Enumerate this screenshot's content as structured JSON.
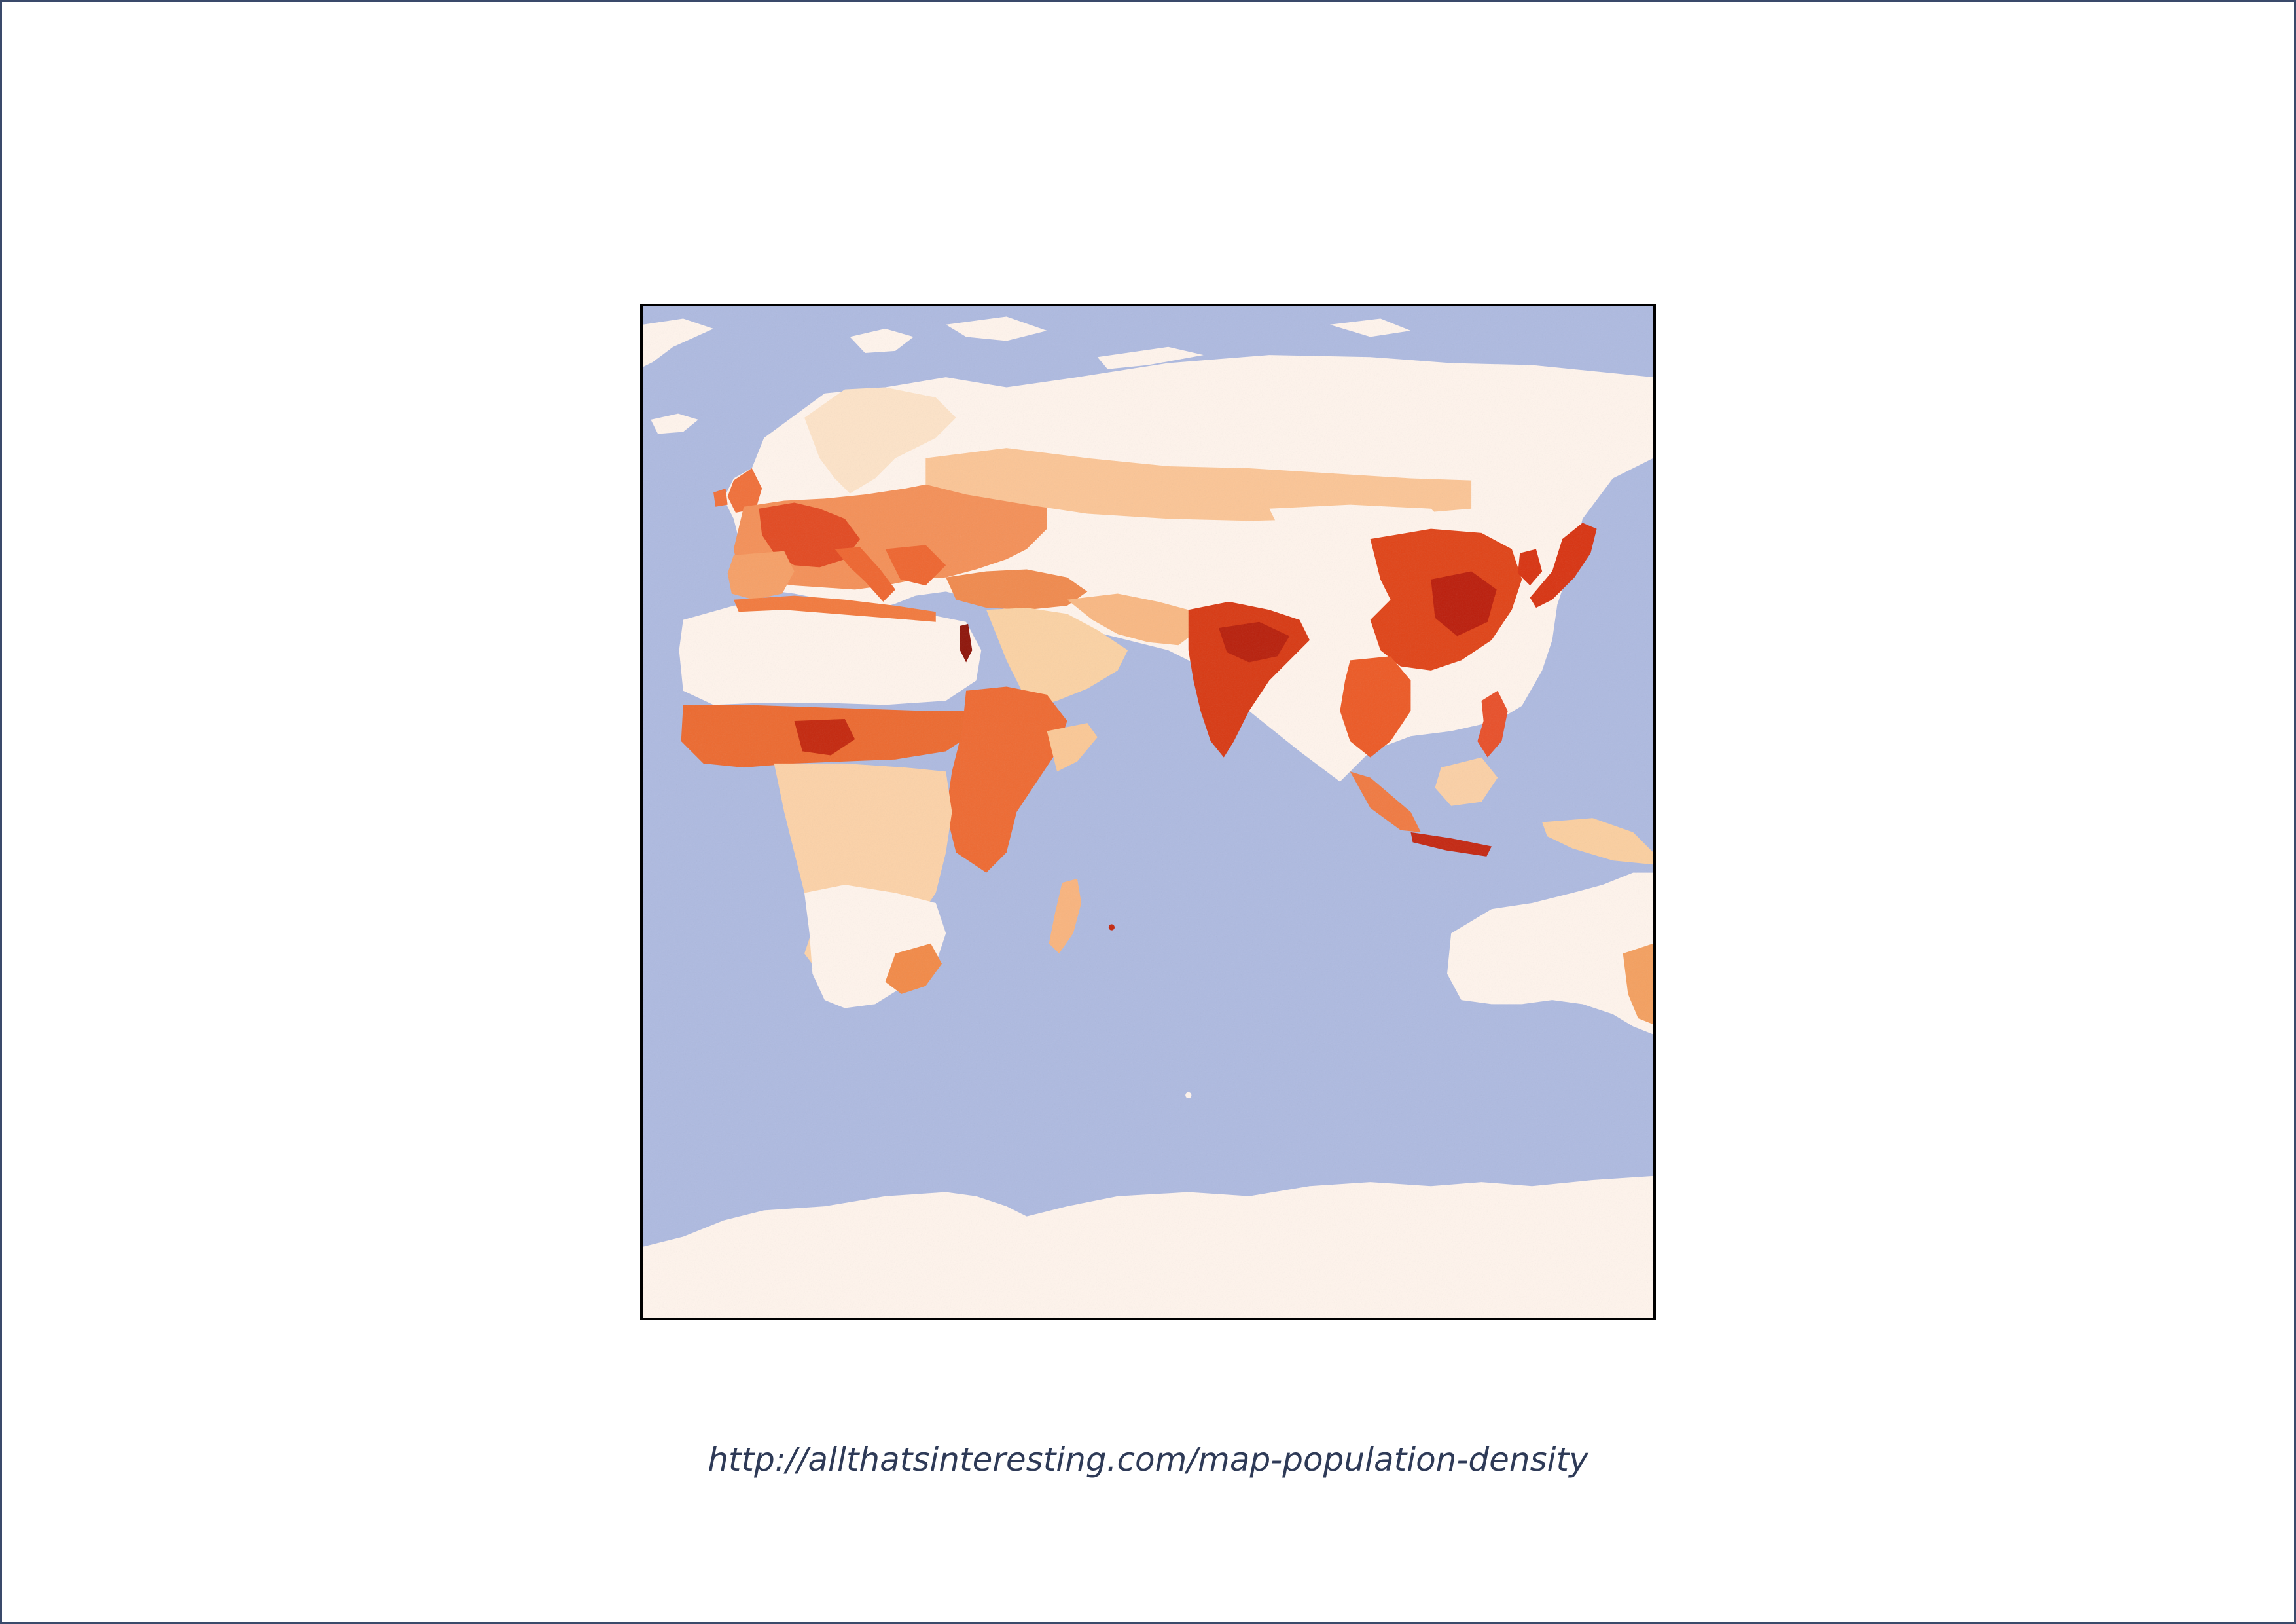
{
  "slide": {
    "caption": "http://allthatsinteresting.com/map-population-density"
  },
  "map": {
    "subject": "world population density",
    "region": "Eastern Hemisphere",
    "colors": {
      "ocean": "#aebae0",
      "land_sparse": "#fff4ec",
      "low_density": "#fcd9b0",
      "medium_density": "#f8a060",
      "high_density": "#ec4a1e",
      "very_high_density": "#b81a0c",
      "frame_border": "#000000",
      "caption_text": "#2e3a57"
    }
  }
}
